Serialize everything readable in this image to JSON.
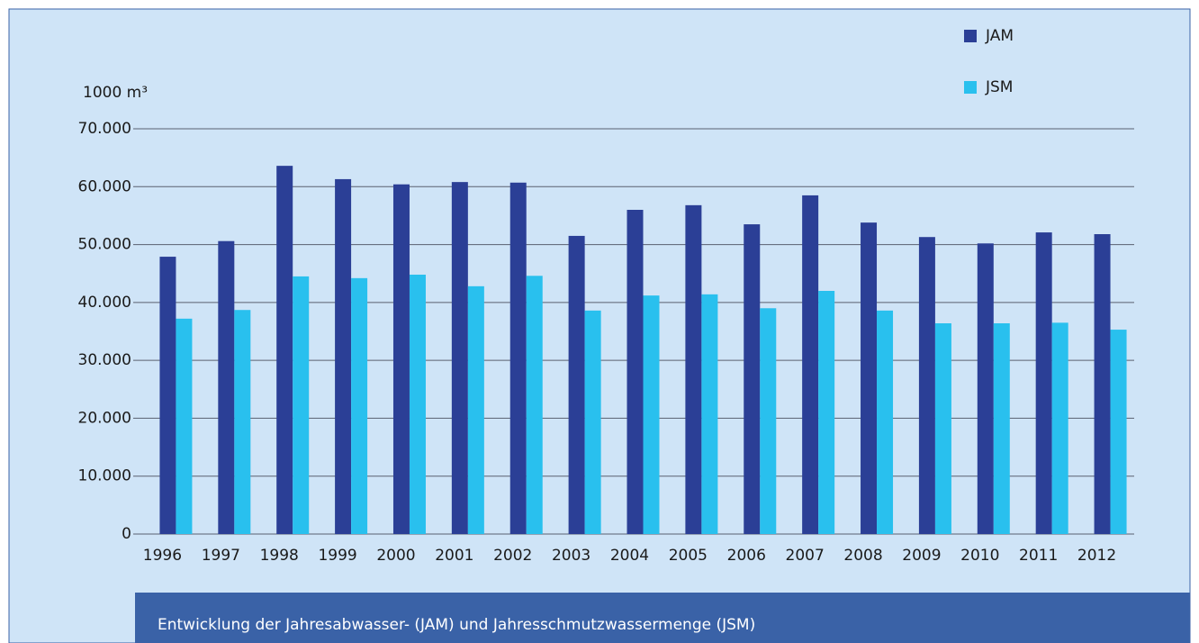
{
  "chart_data": {
    "type": "bar",
    "title": "Entwicklung der Jahresabwasser- (JAM) und Jahresschmutzwassermenge (JSM)",
    "y_label": "1000 m³",
    "categories": [
      "1996",
      "1997",
      "1998",
      "1999",
      "2000",
      "2001",
      "2002",
      "2003",
      "2004",
      "2005",
      "2006",
      "2007",
      "2008",
      "2009",
      "2010",
      "2011",
      "2012"
    ],
    "series": [
      {
        "name": "JAM",
        "color": "#2b3f96",
        "values": [
          47900,
          50600,
          63600,
          61300,
          60400,
          60800,
          60700,
          51500,
          56000,
          56800,
          53500,
          58500,
          53800,
          51300,
          50200,
          52100,
          51800
        ]
      },
      {
        "name": "JSM",
        "color": "#29c0ee",
        "values": [
          37200,
          38700,
          44500,
          44200,
          44800,
          42800,
          44600,
          38600,
          41200,
          41400,
          39000,
          42000,
          38600,
          36400,
          36400,
          36500,
          35300
        ]
      }
    ],
    "ylim": [
      0,
      70000
    ],
    "yticks": [
      0,
      {
        "value": 10000,
        "label": "10.000"
      },
      {
        "value": 20000,
        "label": "20.000"
      },
      {
        "value": 30000,
        "label": "30.000"
      },
      {
        "value": 40000,
        "label": "40.000"
      },
      {
        "value": 50000,
        "label": "50.000"
      },
      {
        "value": 60000,
        "label": "60.000"
      },
      {
        "value": 70000,
        "label": "70.000"
      }
    ],
    "grid": true,
    "legend": "top-right"
  }
}
